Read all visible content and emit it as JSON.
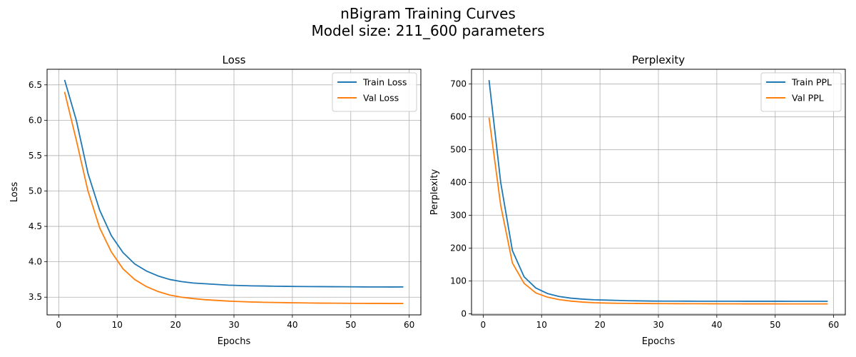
{
  "figure": {
    "title_line1": "nBigram Training Curves",
    "title_line2": "Model size: 211_600 parameters"
  },
  "colors": {
    "train": "#1f77b4",
    "val": "#ff7f0e",
    "grid": "#b0b0b0"
  },
  "chart_data": [
    {
      "type": "line",
      "title": "Loss",
      "xlabel": "Epochs",
      "ylabel": "Loss",
      "xlim": [
        -2,
        62
      ],
      "ylim": [
        3.25,
        6.72
      ],
      "xticks": [
        0,
        10,
        20,
        30,
        40,
        50,
        60
      ],
      "yticks": [
        3.5,
        4.0,
        4.5,
        5.0,
        5.5,
        6.0,
        6.5
      ],
      "ytick_labels": [
        "3.5",
        "4.0",
        "4.5",
        "5.0",
        "5.5",
        "6.0",
        "6.5"
      ],
      "grid": true,
      "legend_position": "top-right",
      "x": [
        1,
        3,
        5,
        7,
        9,
        11,
        13,
        15,
        17,
        19,
        21,
        23,
        25,
        27,
        29,
        31,
        33,
        35,
        37,
        39,
        41,
        43,
        45,
        47,
        49,
        51,
        53,
        55,
        57,
        59
      ],
      "series": [
        {
          "name": "Train Loss",
          "color": "#1f77b4",
          "values": [
            6.57,
            6.0,
            5.25,
            4.73,
            4.37,
            4.13,
            3.97,
            3.87,
            3.8,
            3.75,
            3.72,
            3.7,
            3.69,
            3.68,
            3.67,
            3.665,
            3.66,
            3.658,
            3.655,
            3.653,
            3.651,
            3.65,
            3.649,
            3.648,
            3.647,
            3.646,
            3.645,
            3.645,
            3.644,
            3.645
          ]
        },
        {
          "name": "Val Loss",
          "color": "#ff7f0e",
          "values": [
            6.4,
            5.72,
            5.0,
            4.48,
            4.14,
            3.9,
            3.75,
            3.65,
            3.58,
            3.53,
            3.5,
            3.48,
            3.465,
            3.455,
            3.445,
            3.438,
            3.432,
            3.428,
            3.425,
            3.422,
            3.42,
            3.418,
            3.416,
            3.415,
            3.414,
            3.413,
            3.412,
            3.412,
            3.411,
            3.411
          ]
        }
      ]
    },
    {
      "type": "line",
      "title": "Perplexity",
      "xlabel": "Epochs",
      "ylabel": "Perplexity",
      "xlim": [
        -2,
        62
      ],
      "ylim": [
        -3,
        745
      ],
      "xticks": [
        0,
        10,
        20,
        30,
        40,
        50,
        60
      ],
      "yticks": [
        0,
        100,
        200,
        300,
        400,
        500,
        600,
        700
      ],
      "ytick_labels": [
        "0",
        "100",
        "200",
        "300",
        "400",
        "500",
        "600",
        "700"
      ],
      "grid": true,
      "legend_position": "top-right",
      "x": [
        1,
        3,
        5,
        7,
        9,
        11,
        13,
        15,
        17,
        19,
        21,
        23,
        25,
        27,
        29,
        31,
        33,
        35,
        37,
        39,
        41,
        43,
        45,
        47,
        49,
        51,
        53,
        55,
        57,
        59
      ],
      "series": [
        {
          "name": "Train PPL",
          "color": "#1f77b4",
          "values": [
            712,
            400,
            193,
            113,
            79,
            62,
            53,
            48,
            45,
            43,
            42,
            41,
            40,
            39.5,
            39,
            38.9,
            38.8,
            38.7,
            38.6,
            38.5,
            38.5,
            38.5,
            38.4,
            38.4,
            38.4,
            38.4,
            38.3,
            38.3,
            38.3,
            38.3
          ]
        },
        {
          "name": "Val PPL",
          "color": "#ff7f0e",
          "values": [
            598,
            330,
            155,
            93,
            64,
            51,
            43.5,
            39,
            36,
            34,
            33,
            32.4,
            32,
            31.7,
            31.4,
            31.2,
            31.1,
            31,
            30.9,
            30.8,
            30.7,
            30.7,
            30.6,
            30.6,
            30.6,
            30.5,
            30.5,
            30.5,
            30.5,
            30.5
          ]
        }
      ]
    }
  ]
}
